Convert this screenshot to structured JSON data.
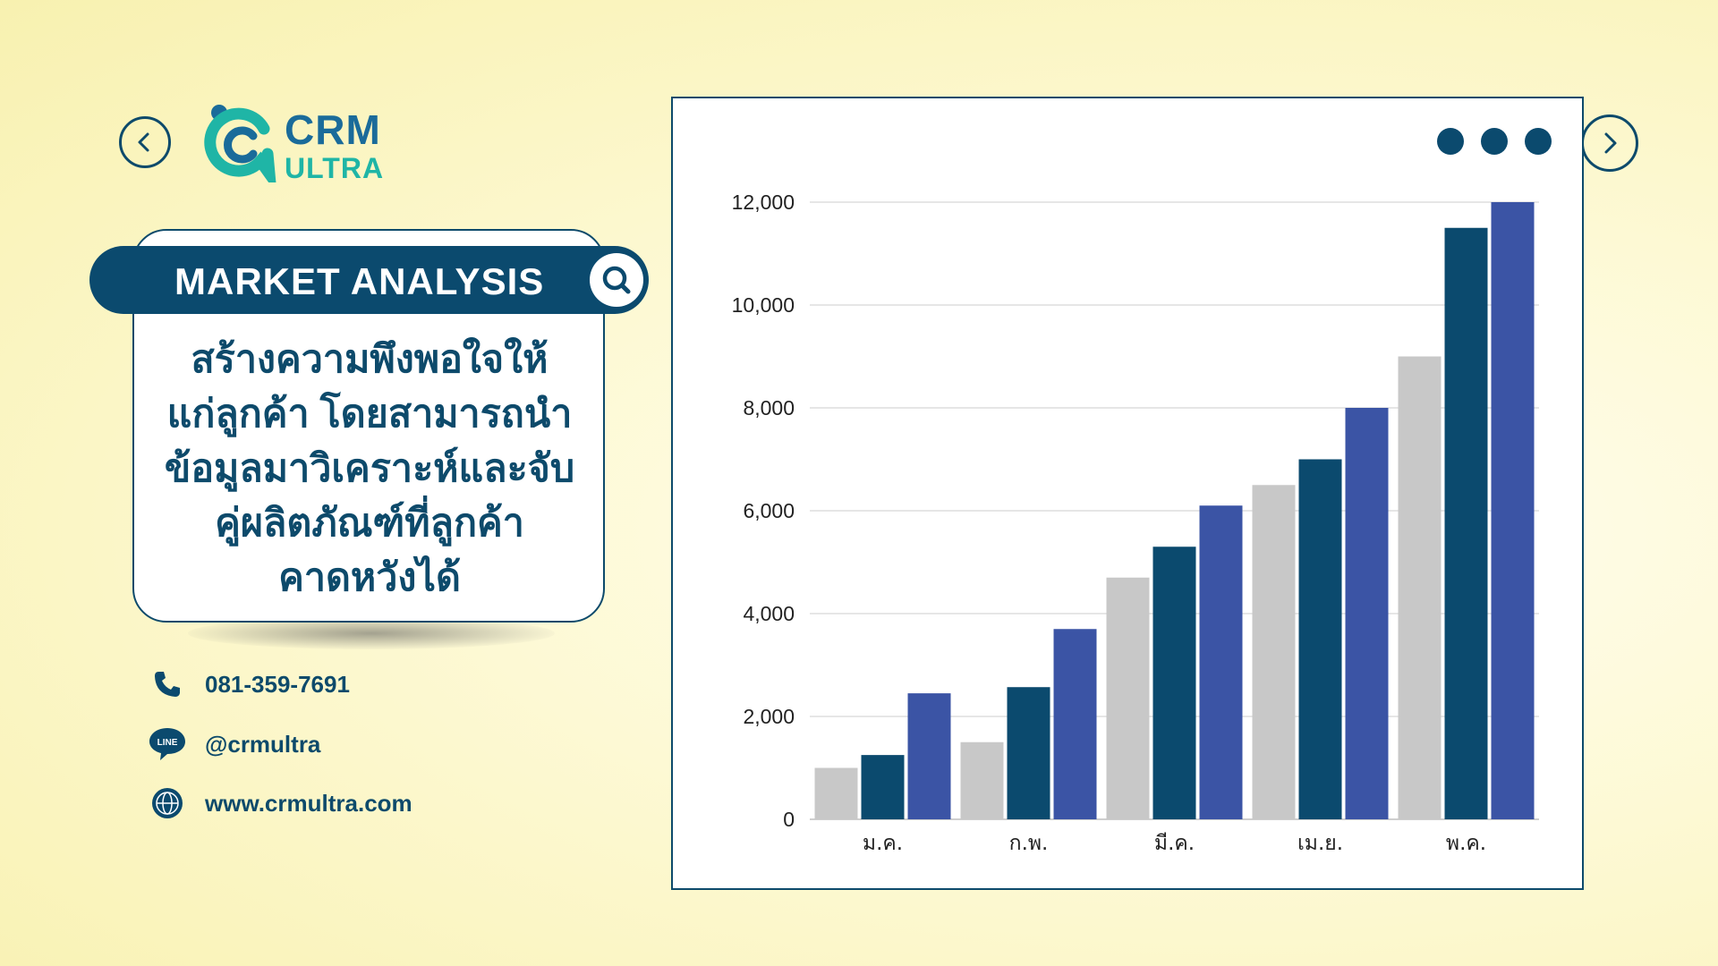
{
  "brand": {
    "line1": "CRM",
    "line2": "ULTRA"
  },
  "banner": {
    "title": "MARKET ANALYSIS"
  },
  "card": {
    "lines": [
      "สร้างความพึงพอใจให้",
      "แก่ลูกค้า โดยสามารถนำ",
      "ข้อมูลมาวิเคราะห์และจับ",
      "คู่ผลิตภัณฑ์ที่ลูกค้า",
      "คาดหวังได้"
    ]
  },
  "contacts": {
    "phone": "081-359-7691",
    "line": "@crmultra",
    "line_badge": "LINE",
    "website": "www.crmultra.com"
  },
  "colors": {
    "navy": "#0b4a6e",
    "teal": "#1fb5a6",
    "series_gray": "#c8c8c8",
    "series_navy": "#0b4a6e",
    "series_blue": "#3b54a5"
  },
  "icons": [
    "chevron-left-icon",
    "chevron-right-icon",
    "search-icon",
    "phone-icon",
    "line-icon",
    "globe-icon",
    "more-dots-icon"
  ],
  "chart_data": {
    "type": "bar",
    "categories": [
      "ม.ค.",
      "ก.พ.",
      "มี.ค.",
      "เม.ย.",
      "พ.ค."
    ],
    "series": [
      {
        "values": [
          1000,
          1500,
          4700,
          6500,
          9000
        ],
        "color": "#c8c8c8"
      },
      {
        "values": [
          1250,
          2570,
          5300,
          7000,
          11500
        ],
        "color": "#0b4a6e"
      },
      {
        "values": [
          2450,
          3700,
          6100,
          8000,
          12000
        ],
        "color": "#3b54a5"
      }
    ],
    "y_ticks": [
      "0",
      "2,000",
      "4,000",
      "6,000",
      "8,000",
      "10,000",
      "12,000"
    ],
    "ylim": [
      0,
      12000
    ],
    "grid": true,
    "legend": "none"
  }
}
